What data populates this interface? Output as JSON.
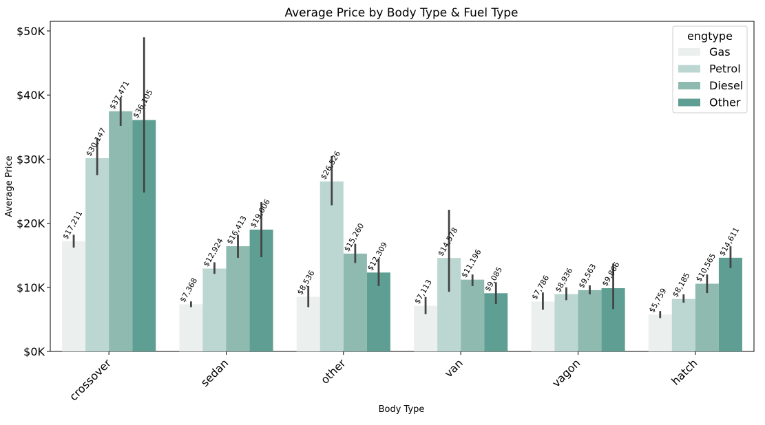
{
  "chart_data": {
    "type": "bar",
    "title": "Average Price by Body Type & Fuel Type",
    "xlabel": "Body Type",
    "ylabel": "Average Price",
    "ylim": [
      0,
      51500
    ],
    "yticks": [
      0,
      10000,
      20000,
      30000,
      40000,
      50000
    ],
    "ytick_labels": [
      "$0K",
      "$10K",
      "$20K",
      "$30K",
      "$40K",
      "$50K"
    ],
    "categories": [
      "crossover",
      "sedan",
      "other",
      "van",
      "vagon",
      "hatch"
    ],
    "legend": {
      "title": "engtype",
      "position": "top-right"
    },
    "grid": false,
    "series": [
      {
        "name": "Gas",
        "color": "#ebf0ee",
        "values": [
          17211,
          7368,
          8536,
          7113,
          7786,
          5759
        ],
        "labels": [
          "$17,211",
          "$7,368",
          "$8,536",
          "$7,113",
          "$7,786",
          "$5,759"
        ],
        "err_low": [
          16200,
          6900,
          6900,
          5800,
          6500,
          5200
        ],
        "err_high": [
          18200,
          7800,
          10200,
          8500,
          9200,
          6300
        ]
      },
      {
        "name": "Petrol",
        "color": "#bcd7d2",
        "values": [
          30147,
          12924,
          26526,
          14578,
          8936,
          8185
        ],
        "labels": [
          "$30,147",
          "$12,924",
          "$26,526",
          "$14,578",
          "$8,936",
          "$8,185"
        ],
        "err_low": [
          27500,
          12100,
          22800,
          9300,
          8000,
          7600
        ],
        "err_high": [
          33300,
          13900,
          30500,
          22100,
          10000,
          8900
        ]
      },
      {
        "name": "Diesel",
        "color": "#8fbab0",
        "values": [
          37471,
          16413,
          15260,
          11196,
          9563,
          10565
        ],
        "labels": [
          "$37,471",
          "$16,413",
          "$15,260",
          "$11,196",
          "$9,563",
          "$10,565"
        ],
        "err_low": [
          35200,
          14600,
          13800,
          10200,
          8900,
          9100
        ],
        "err_high": [
          39700,
          18200,
          16800,
          12000,
          10300,
          12000
        ]
      },
      {
        "name": "Other",
        "color": "#5f9f93",
        "values": [
          36105,
          19006,
          12309,
          9085,
          9866,
          14611
        ],
        "labels": [
          "$36,105",
          "$19,006",
          "$12,309",
          "$9,085",
          "$9,866",
          "$14,611"
        ],
        "err_low": [
          24800,
          14700,
          10200,
          7400,
          6600,
          13000
        ],
        "err_high": [
          49000,
          23300,
          14500,
          10800,
          13700,
          16400
        ]
      }
    ]
  }
}
